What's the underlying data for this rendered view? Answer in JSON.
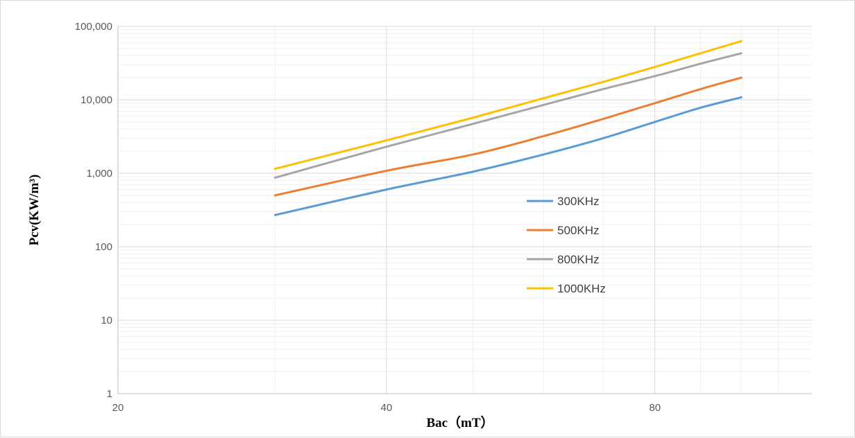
{
  "chart_data": {
    "type": "line",
    "title": "",
    "xlabel": "Bac（mT）",
    "ylabel": "Pcv(KW/m³)",
    "x_scale": "log",
    "y_scale": "log",
    "xlim": [
      20,
      120
    ],
    "ylim": [
      1,
      100000
    ],
    "x_ticks": [
      20,
      40,
      80
    ],
    "x_tick_labels": [
      "20",
      "40",
      "80"
    ],
    "y_ticks": [
      1,
      10,
      100,
      1000,
      10000,
      100000
    ],
    "y_tick_labels": [
      "1",
      "10",
      "100",
      "1,000",
      "10,000",
      "100,000"
    ],
    "grid": true,
    "legend_position": "center-right",
    "x": [
      30,
      40,
      50,
      60,
      70,
      80,
      90,
      100
    ],
    "series": [
      {
        "name": "300KHz",
        "color": "#5B9BD5",
        "values": [
          270,
          600,
          1050,
          1800,
          3000,
          5000,
          7800,
          10800
        ]
      },
      {
        "name": "500KHz",
        "color": "#ED7D31",
        "values": [
          500,
          1080,
          1800,
          3200,
          5500,
          9000,
          14000,
          20000
        ]
      },
      {
        "name": "800KHz",
        "color": "#A5A5A5",
        "values": [
          870,
          2300,
          4700,
          8500,
          14000,
          21000,
          31000,
          43000
        ]
      },
      {
        "name": "1000KHz",
        "color": "#FFC000",
        "values": [
          1150,
          2800,
          5700,
          10500,
          17500,
          28000,
          43000,
          63000
        ]
      }
    ]
  }
}
